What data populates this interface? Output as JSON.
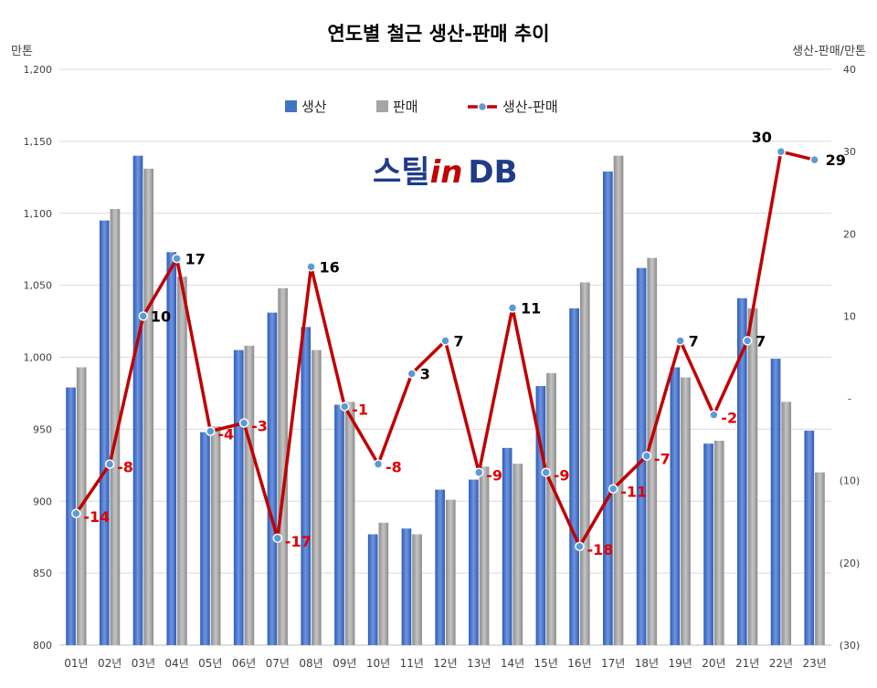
{
  "chart_data": {
    "type": "bar+line",
    "title": "연도별 철근 생산-판매 추이",
    "left_unit": "만톤",
    "right_unit": "생산-판매/만톤",
    "watermark": "스틸in DB",
    "categories": [
      "01년",
      "02년",
      "03년",
      "04년",
      "05년",
      "06년",
      "07년",
      "08년",
      "09년",
      "10년",
      "11년",
      "12년",
      "13년",
      "14년",
      "15년",
      "16년",
      "17년",
      "18년",
      "19년",
      "20년",
      "21년",
      "22년",
      "23년"
    ],
    "left_axis": {
      "min": 800,
      "max": 1200,
      "ticks": [
        "800",
        "850",
        "900",
        "950",
        "1,000",
        "1,050",
        "1,100",
        "1,150",
        "1,200"
      ]
    },
    "right_axis": {
      "min": -30,
      "max": 40,
      "ticks": [
        "(30)",
        "(20)",
        "(10)",
        "-",
        "10",
        "20",
        "30",
        "40"
      ]
    },
    "grid": true,
    "legend_position": "top-center",
    "series": [
      {
        "name": "생산",
        "kind": "bar",
        "axis": "left",
        "color": "#4472C4",
        "values": [
          979,
          1095,
          1140,
          1073,
          948,
          1005,
          1031,
          1021,
          967,
          877,
          881,
          908,
          915,
          937,
          980,
          1034,
          1129,
          1062,
          993,
          940,
          1041,
          999,
          949
        ]
      },
      {
        "name": "판매",
        "kind": "bar",
        "axis": "left",
        "color": "#A5A5A5",
        "values": [
          993,
          1103,
          1131,
          1056,
          952,
          1008,
          1048,
          1005,
          969,
          885,
          877,
          901,
          924,
          926,
          989,
          1052,
          1140,
          1069,
          986,
          942,
          1034,
          969,
          920
        ]
      },
      {
        "name": "생산-판매",
        "kind": "line",
        "axis": "right",
        "color": "#C00000",
        "marker_color": "#5B9BD5",
        "values": [
          -14,
          -8,
          10,
          17,
          -4,
          -3,
          -17,
          16,
          -1,
          -8,
          3,
          7,
          -9,
          11,
          -9,
          -18,
          -11,
          -7,
          7,
          -2,
          7,
          30,
          29
        ],
        "labels": [
          "-14",
          "-8",
          "10",
          "17",
          "-4",
          "-3",
          "-17",
          "16",
          "-1",
          "-8",
          "3",
          "7",
          "-9",
          "11",
          "-9",
          "-18",
          "-11",
          "-7",
          "7",
          "-2",
          "7",
          "30",
          "29"
        ]
      }
    ]
  }
}
